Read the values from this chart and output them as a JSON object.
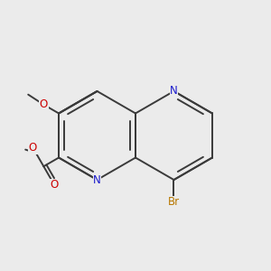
{
  "bg_color": "#ebebeb",
  "atom_colors": {
    "C": "#3a3a3a",
    "N": "#1a1acc",
    "O": "#cc0000",
    "Br": "#b87800"
  },
  "bond_color": "#3a3a3a",
  "bond_width": 1.4,
  "figsize": [
    3.0,
    3.0
  ],
  "dpi": 100,
  "scale": 0.75,
  "ox": 0.5,
  "oy": 0.5
}
